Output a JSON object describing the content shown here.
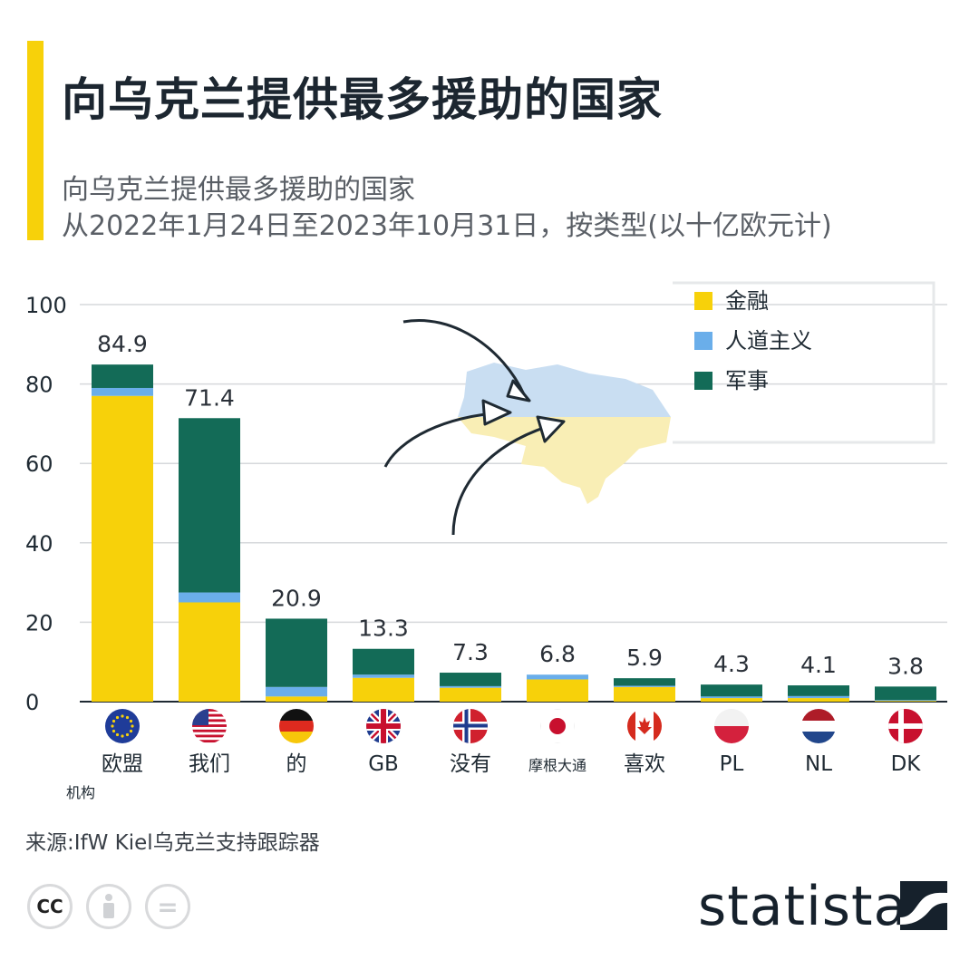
{
  "header": {
    "title": "向乌克兰提供最多援助的国家",
    "subtitle_line1": "向乌克兰提供最多援助的国家",
    "subtitle_line2": "从2022年1月24日至2023年10月31日，按类型(以十亿欧元计)"
  },
  "colors": {
    "accent": "#f7d10a",
    "financial": "#f7d10a",
    "humanitarian": "#6aaeea",
    "military": "#136b57",
    "map_top": "#c9def2",
    "map_bottom": "#f9eeb5"
  },
  "chart_data": {
    "type": "bar",
    "stacked": true,
    "categories": [
      "欧盟",
      "我们",
      "的",
      "GB",
      "没有",
      "摩根大通",
      "喜欢",
      "PL",
      "NL",
      "DK"
    ],
    "category_sublabels": [
      "机构",
      "",
      "",
      "",
      "",
      "",
      "",
      "",
      "",
      ""
    ],
    "flags": [
      "eu",
      "us",
      "de",
      "gb",
      "no",
      "jp",
      "ca",
      "pl",
      "nl",
      "dk"
    ],
    "series": [
      {
        "name": "金融",
        "values": [
          77.0,
          25.0,
          1.3,
          6.0,
          3.5,
          5.6,
          3.7,
          0.9,
          0.9,
          0.2
        ]
      },
      {
        "name": "人道主义",
        "values": [
          2.0,
          2.5,
          2.4,
          0.8,
          0.4,
          1.2,
          0.3,
          0.4,
          0.5,
          0.2
        ]
      },
      {
        "name": "军事",
        "values": [
          5.9,
          43.9,
          17.2,
          6.5,
          3.4,
          0.0,
          1.9,
          3.0,
          2.7,
          3.4
        ]
      }
    ],
    "totals": [
      "84.9",
      "71.4",
      "20.9",
      "13.3",
      "7.3",
      "6.8",
      "5.9",
      "4.3",
      "4.1",
      "3.8"
    ],
    "ylim": [
      0,
      100
    ],
    "yticks": [
      0,
      20,
      40,
      60,
      80,
      100
    ],
    "grid": true,
    "legend": "top-right",
    "xlabel": "",
    "ylabel": ""
  },
  "footer": {
    "source": "来源:IfW Kiel乌克兰支持跟踪器",
    "license_icons": [
      "cc-icon",
      "attribution-icon",
      "no-derivatives-icon"
    ],
    "cc_label": "CC",
    "nd_label": "=",
    "brand": "statista"
  }
}
